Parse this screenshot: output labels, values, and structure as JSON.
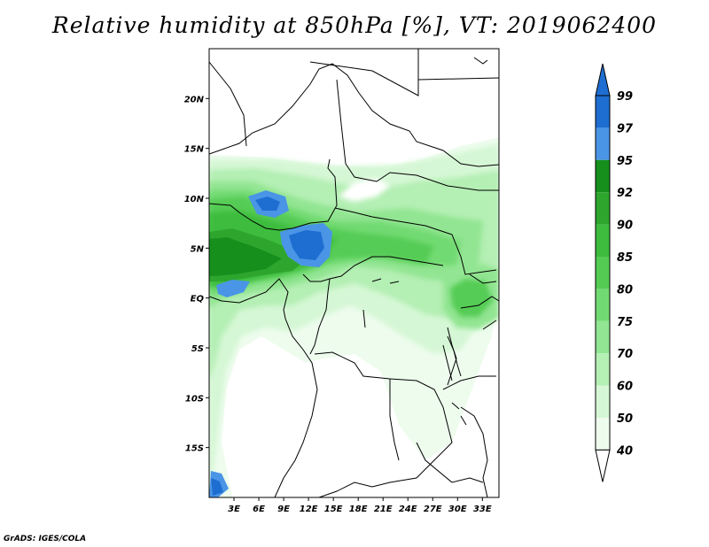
{
  "title": "Relative humidity at 850hPa [%], VT: 2019062400",
  "credit": "GrADS: IGES/COLA",
  "map": {
    "lat_ticks": [
      {
        "label": "20N",
        "lat": 20
      },
      {
        "label": "15N",
        "lat": 15
      },
      {
        "label": "10N",
        "lat": 10
      },
      {
        "label": "5N",
        "lat": 5
      },
      {
        "label": "EQ",
        "lat": 0
      },
      {
        "label": "5S",
        "lat": -5
      },
      {
        "label": "10S",
        "lat": -10
      },
      {
        "label": "15S",
        "lat": -15
      }
    ],
    "lon_ticks": [
      {
        "label": "3E",
        "lon": 3
      },
      {
        "label": "6E",
        "lon": 6
      },
      {
        "label": "9E",
        "lon": 9
      },
      {
        "label": "12E",
        "lon": 12
      },
      {
        "label": "15E",
        "lon": 15
      },
      {
        "label": "18E",
        "lon": 18
      },
      {
        "label": "21E",
        "lon": 21
      },
      {
        "label": "24E",
        "lon": 24
      },
      {
        "label": "27E",
        "lon": 27
      },
      {
        "label": "30E",
        "lon": 30
      },
      {
        "label": "33E",
        "lon": 33
      }
    ],
    "lon_range": [
      0,
      35
    ],
    "lat_range": [
      -20,
      25
    ]
  },
  "colorbar": {
    "levels": [
      "99",
      "97",
      "95",
      "92",
      "90",
      "85",
      "80",
      "75",
      "70",
      "60",
      "50",
      "40"
    ],
    "colors": [
      "#1e6ed2",
      "#4a95e6",
      "#178f1d",
      "#2ea62e",
      "#3ebc3e",
      "#54cc54",
      "#72da72",
      "#92e592",
      "#b4efb4",
      "#d5f7d5",
      "#eefcee"
    ]
  }
}
